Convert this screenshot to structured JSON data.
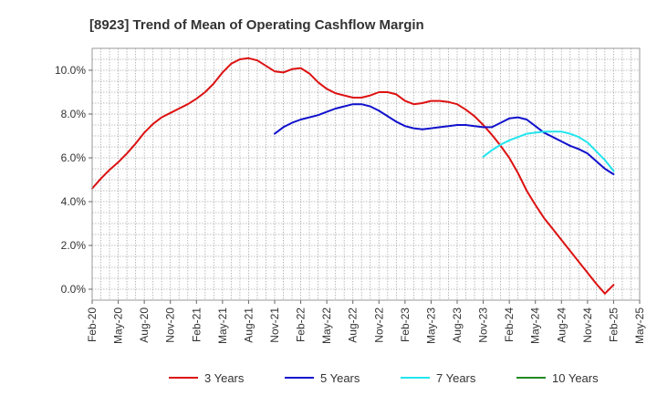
{
  "chart_data": {
    "type": "line",
    "title": "[8923]  Trend of Mean of Operating Cashflow Margin",
    "xlabel": "",
    "ylabel": "",
    "x_range": [
      "2020-02",
      "2025-05"
    ],
    "ylim": [
      -0.5,
      11.0
    ],
    "y_ticks": [
      0,
      2,
      4,
      6,
      8,
      10
    ],
    "y_tick_labels": [
      "0.0%",
      "2.0%",
      "4.0%",
      "6.0%",
      "8.0%",
      "10.0%"
    ],
    "x_ticks": [
      "2020-02",
      "2020-05",
      "2020-08",
      "2020-11",
      "2021-02",
      "2021-05",
      "2021-08",
      "2021-11",
      "2022-02",
      "2022-05",
      "2022-08",
      "2022-11",
      "2023-02",
      "2023-05",
      "2023-08",
      "2023-11",
      "2024-02",
      "2024-05",
      "2024-08",
      "2024-11",
      "2025-02",
      "2025-05"
    ],
    "x_tick_labels": [
      "Feb-20",
      "May-20",
      "Aug-20",
      "Nov-20",
      "Feb-21",
      "May-21",
      "Aug-21",
      "Nov-21",
      "Feb-22",
      "May-22",
      "Aug-22",
      "Nov-22",
      "Feb-23",
      "May-23",
      "Aug-23",
      "Nov-23",
      "Feb-24",
      "May-24",
      "Aug-24",
      "Nov-24",
      "Feb-25",
      "May-25"
    ],
    "grid": true,
    "legend_position": "bottom",
    "series": [
      {
        "name": "3 Years",
        "color": "#dd1111",
        "points": [
          [
            "2020-02",
            4.6
          ],
          [
            "2020-03",
            5.05
          ],
          [
            "2020-04",
            5.45
          ],
          [
            "2020-05",
            5.8
          ],
          [
            "2020-06",
            6.2
          ],
          [
            "2020-07",
            6.65
          ],
          [
            "2020-08",
            7.15
          ],
          [
            "2020-09",
            7.55
          ],
          [
            "2020-10",
            7.85
          ],
          [
            "2020-11",
            8.05
          ],
          [
            "2020-12",
            8.25
          ],
          [
            "2021-01",
            8.45
          ],
          [
            "2021-02",
            8.7
          ],
          [
            "2021-03",
            9.0
          ],
          [
            "2021-04",
            9.4
          ],
          [
            "2021-05",
            9.9
          ],
          [
            "2021-06",
            10.3
          ],
          [
            "2021-07",
            10.5
          ],
          [
            "2021-08",
            10.55
          ],
          [
            "2021-09",
            10.45
          ],
          [
            "2021-10",
            10.2
          ],
          [
            "2021-11",
            9.95
          ],
          [
            "2021-12",
            9.9
          ],
          [
            "2022-01",
            10.05
          ],
          [
            "2022-02",
            10.1
          ],
          [
            "2022-03",
            9.85
          ],
          [
            "2022-04",
            9.45
          ],
          [
            "2022-05",
            9.15
          ],
          [
            "2022-06",
            8.95
          ],
          [
            "2022-07",
            8.85
          ],
          [
            "2022-08",
            8.75
          ],
          [
            "2022-09",
            8.75
          ],
          [
            "2022-10",
            8.85
          ],
          [
            "2022-11",
            9.0
          ],
          [
            "2022-12",
            9.0
          ],
          [
            "2023-01",
            8.9
          ],
          [
            "2023-02",
            8.6
          ],
          [
            "2023-03",
            8.45
          ],
          [
            "2023-04",
            8.5
          ],
          [
            "2023-05",
            8.6
          ],
          [
            "2023-06",
            8.6
          ],
          [
            "2023-07",
            8.55
          ],
          [
            "2023-08",
            8.45
          ],
          [
            "2023-09",
            8.2
          ],
          [
            "2023-10",
            7.9
          ],
          [
            "2023-11",
            7.5
          ],
          [
            "2023-12",
            7.05
          ],
          [
            "2024-01",
            6.55
          ],
          [
            "2024-02",
            6.0
          ],
          [
            "2024-03",
            5.3
          ],
          [
            "2024-04",
            4.5
          ],
          [
            "2024-05",
            3.85
          ],
          [
            "2024-06",
            3.25
          ],
          [
            "2024-07",
            2.75
          ],
          [
            "2024-08",
            2.25
          ],
          [
            "2024-09",
            1.75
          ],
          [
            "2024-10",
            1.25
          ],
          [
            "2024-11",
            0.75
          ],
          [
            "2024-12",
            0.25
          ],
          [
            "2025-01",
            -0.2
          ],
          [
            "2025-02",
            0.2
          ]
        ]
      },
      {
        "name": "5 Years",
        "color": "#1111cc",
        "points": [
          [
            "2021-11",
            7.1
          ],
          [
            "2021-12",
            7.4
          ],
          [
            "2022-01",
            7.6
          ],
          [
            "2022-02",
            7.75
          ],
          [
            "2022-03",
            7.85
          ],
          [
            "2022-04",
            7.95
          ],
          [
            "2022-05",
            8.1
          ],
          [
            "2022-06",
            8.25
          ],
          [
            "2022-07",
            8.35
          ],
          [
            "2022-08",
            8.45
          ],
          [
            "2022-09",
            8.45
          ],
          [
            "2022-10",
            8.35
          ],
          [
            "2022-11",
            8.15
          ],
          [
            "2022-12",
            7.9
          ],
          [
            "2023-01",
            7.65
          ],
          [
            "2023-02",
            7.45
          ],
          [
            "2023-03",
            7.35
          ],
          [
            "2023-04",
            7.3
          ],
          [
            "2023-05",
            7.35
          ],
          [
            "2023-06",
            7.4
          ],
          [
            "2023-07",
            7.45
          ],
          [
            "2023-08",
            7.5
          ],
          [
            "2023-09",
            7.5
          ],
          [
            "2023-10",
            7.45
          ],
          [
            "2023-11",
            7.4
          ],
          [
            "2023-12",
            7.4
          ],
          [
            "2024-01",
            7.6
          ],
          [
            "2024-02",
            7.8
          ],
          [
            "2024-03",
            7.85
          ],
          [
            "2024-04",
            7.75
          ],
          [
            "2024-05",
            7.45
          ],
          [
            "2024-06",
            7.15
          ],
          [
            "2024-07",
            6.95
          ],
          [
            "2024-08",
            6.75
          ],
          [
            "2024-09",
            6.55
          ],
          [
            "2024-10",
            6.4
          ],
          [
            "2024-11",
            6.2
          ],
          [
            "2024-12",
            5.85
          ],
          [
            "2025-01",
            5.5
          ],
          [
            "2025-02",
            5.25
          ]
        ]
      },
      {
        "name": "7 Years",
        "color": "#22e5ee",
        "points": [
          [
            "2023-11",
            6.05
          ],
          [
            "2023-12",
            6.35
          ],
          [
            "2024-01",
            6.6
          ],
          [
            "2024-02",
            6.8
          ],
          [
            "2024-03",
            6.95
          ],
          [
            "2024-04",
            7.1
          ],
          [
            "2024-05",
            7.15
          ],
          [
            "2024-06",
            7.2
          ],
          [
            "2024-07",
            7.2
          ],
          [
            "2024-08",
            7.2
          ],
          [
            "2024-09",
            7.1
          ],
          [
            "2024-10",
            6.95
          ],
          [
            "2024-11",
            6.7
          ],
          [
            "2024-12",
            6.3
          ],
          [
            "2025-01",
            5.9
          ],
          [
            "2025-02",
            5.4
          ]
        ]
      },
      {
        "name": "10 Years",
        "color": "#228822",
        "points": []
      }
    ]
  }
}
